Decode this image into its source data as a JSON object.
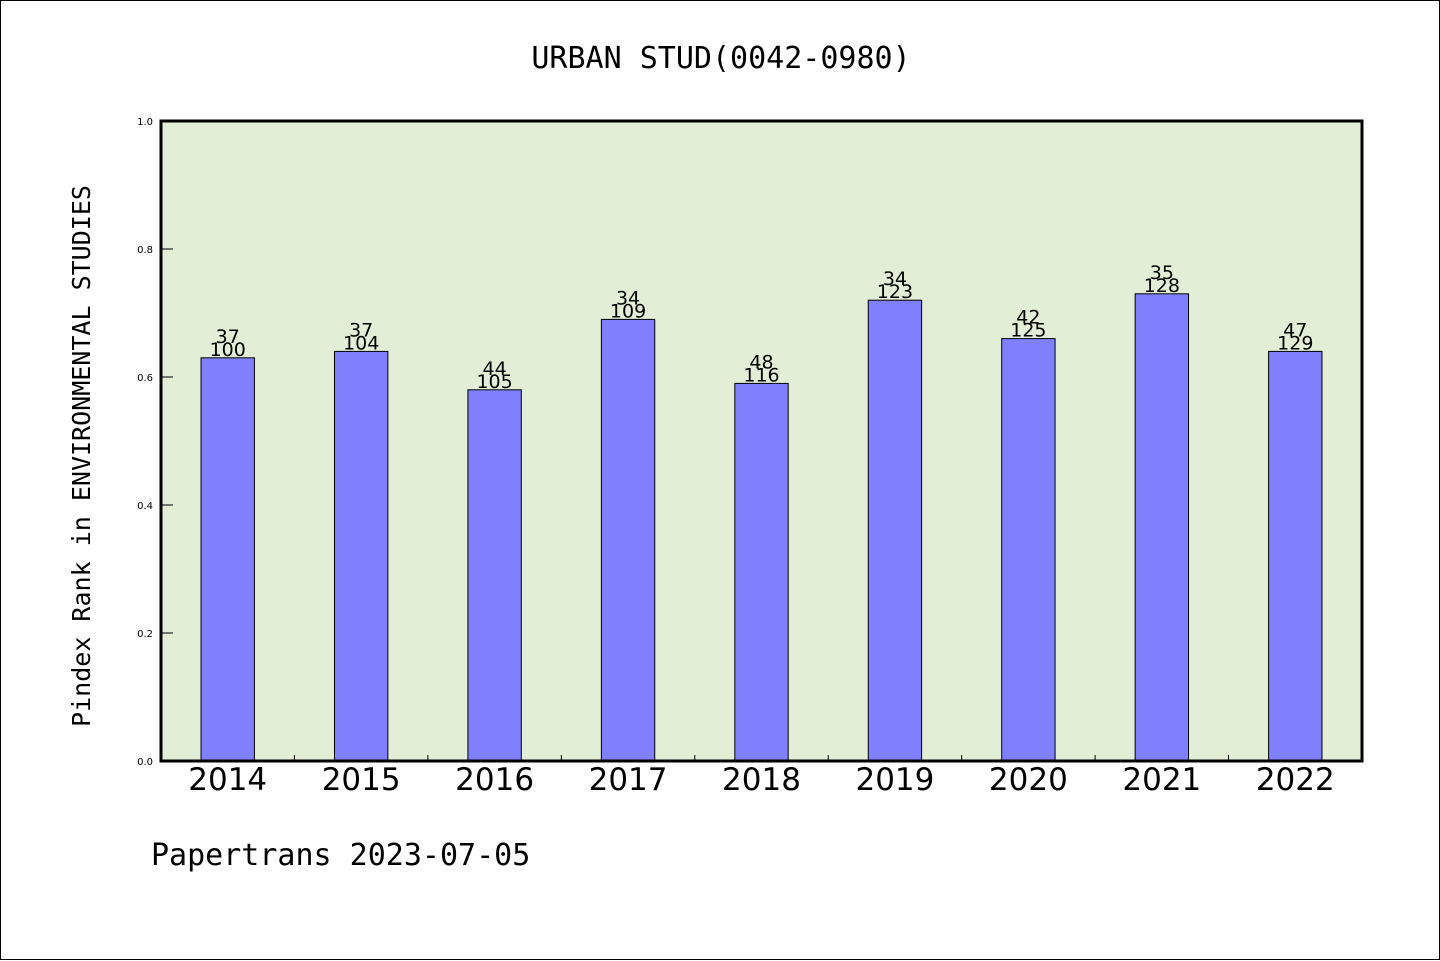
{
  "chart_data": {
    "type": "bar",
    "title": "URBAN STUD(0042-0980)",
    "ylabel": "Pindex Rank in ENVIRONMENTAL STUDIES",
    "xlabel": "",
    "categories": [
      "2014",
      "2015",
      "2016",
      "2017",
      "2018",
      "2019",
      "2020",
      "2021",
      "2022"
    ],
    "values": [
      0.63,
      0.64,
      0.58,
      0.69,
      0.59,
      0.72,
      0.66,
      0.73,
      0.64
    ],
    "rank_labels": [
      "37",
      "37",
      "44",
      "34",
      "48",
      "34",
      "42",
      "35",
      "47"
    ],
    "total_labels": [
      "100",
      "104",
      "105",
      "109",
      "116",
      "123",
      "125",
      "128",
      "129"
    ],
    "ylim": [
      0.0,
      1.0
    ],
    "yticks": [
      "0.0",
      "0.2",
      "0.4",
      "0.6",
      "0.8",
      "1.0"
    ],
    "grid": false,
    "colors": {
      "plot_background": "#e2efd6",
      "bar_fill": "#8080ff",
      "bar_edge": "#000000"
    }
  },
  "footer": {
    "credit": "Papertrans 2023-07-05"
  }
}
